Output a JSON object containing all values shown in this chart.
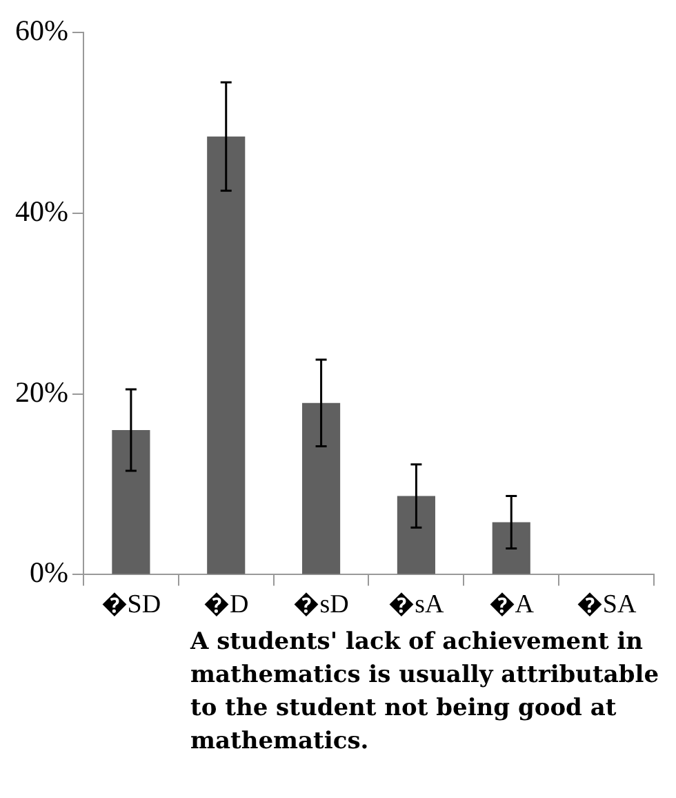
{
  "chart_data": {
    "type": "bar",
    "xlabel": "A students' lack of achievement in mathematics is usually attributable to the student not being good at mathematics.",
    "categories": [
      "�SD",
      "�D",
      "�sD",
      "�sA",
      "�A",
      "�SA"
    ],
    "values": [
      16,
      48.5,
      19,
      8.7,
      5.8,
      0
    ],
    "errors": [
      4.5,
      6,
      4.8,
      3.5,
      2.9,
      null
    ],
    "color": "#606060",
    "ylim": [
      0,
      60
    ],
    "yticks": [
      {
        "value": 0,
        "label": "0%"
      },
      {
        "value": 20,
        "label": "20%"
      },
      {
        "value": 40,
        "label": "40%"
      },
      {
        "value": 60,
        "label": "60%"
      }
    ],
    "grid": false,
    "legend": false
  }
}
